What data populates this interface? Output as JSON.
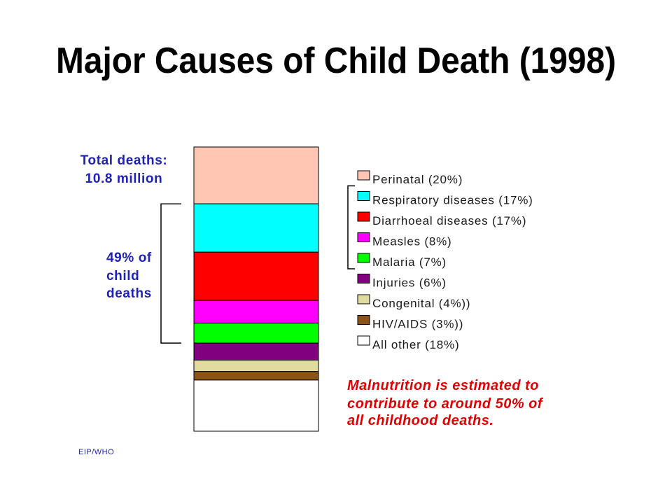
{
  "chart_data": {
    "type": "bar",
    "stacked": true,
    "title": "Major Causes of Child Death (1998)",
    "xlabel": "",
    "ylabel": "",
    "ylim": [
      0,
      100
    ],
    "grid": false,
    "legend": "right",
    "series": [
      {
        "name": "Perinatal (20%)",
        "value": 20,
        "color": "#ffc6b4"
      },
      {
        "name": "Respiratory diseases (17%)",
        "value": 17,
        "color": "#00ffff"
      },
      {
        "name": "Diarrhoeal diseases (17%)",
        "value": 17,
        "color": "#ff0000"
      },
      {
        "name": "Measles (8%)",
        "value": 8,
        "color": "#ff00ff"
      },
      {
        "name": "Malaria (7%)",
        "value": 7,
        "color": "#00ff00"
      },
      {
        "name": "Injuries (6%)",
        "value": 6,
        "color": "#800080"
      },
      {
        "name": "Congenital (4%))",
        "value": 4,
        "color": "#e0dca0"
      },
      {
        "name": "HIV/AIDS (3%))",
        "value": 3,
        "color": "#8b5519"
      },
      {
        "name": "All other (18%)",
        "value": 18,
        "color": "#ffffff"
      }
    ],
    "bracket_group": {
      "from_series": 1,
      "to_series": 4,
      "label": [
        "49% of",
        "child",
        "deaths"
      ]
    },
    "annotations": {
      "total_deaths": [
        "Total deaths:",
        "10.8 million"
      ],
      "note": [
        "Malnutrition is estimated to",
        "contribute to around 50% of",
        "all childhood deaths."
      ]
    }
  },
  "source": "EIP/WHO",
  "colors": {
    "title": "#000000",
    "annotation": "#1e22b8",
    "note": "#e00000",
    "legend_text": "#1a1a1a",
    "outline": "#000000"
  }
}
